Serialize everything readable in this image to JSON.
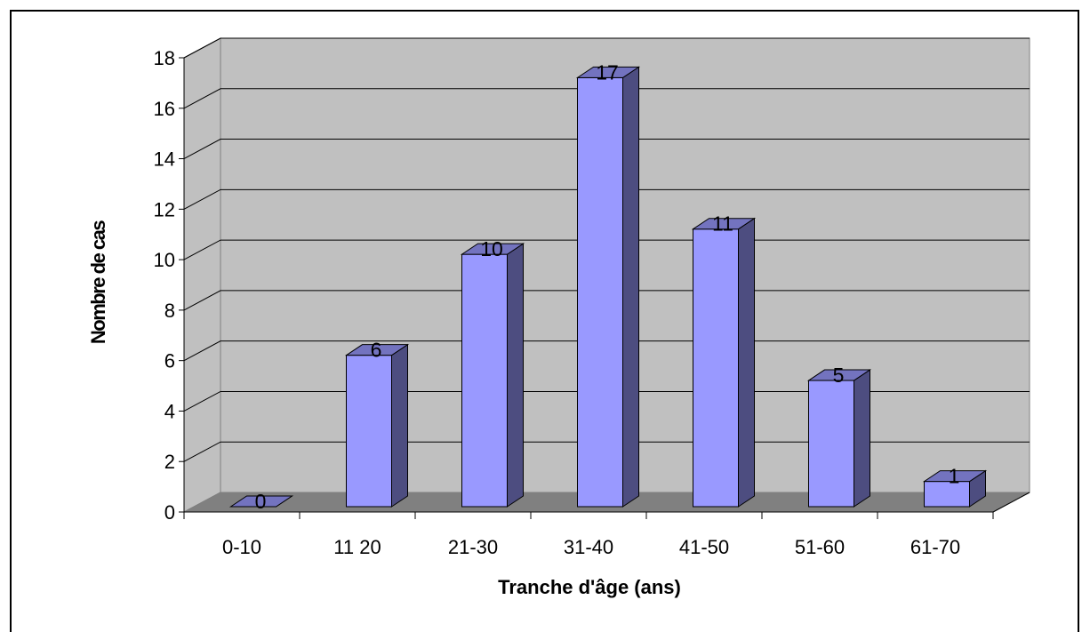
{
  "chart_data": {
    "type": "bar",
    "categories": [
      "0-10",
      "11 20",
      "21-30",
      "31-40",
      "41-50",
      "51-60",
      "61-70"
    ],
    "values": [
      0,
      6,
      10,
      17,
      11,
      5,
      1
    ],
    "title": "",
    "xlabel": "Tranche d'âge (ans)",
    "ylabel": "Nombre de cas",
    "ylim": [
      0,
      18
    ],
    "yticks": [
      0,
      2,
      4,
      6,
      8,
      10,
      12,
      14,
      16,
      18
    ],
    "grid": true,
    "legend": "none",
    "three_d": true,
    "data_labels": true
  },
  "colors": {
    "wall": "#c0c0c0",
    "floor": "#808080",
    "bar_front": "#9999ff",
    "bar_side": "#4d4d80",
    "bar_top": "#7373bf",
    "outline": "#000000"
  }
}
